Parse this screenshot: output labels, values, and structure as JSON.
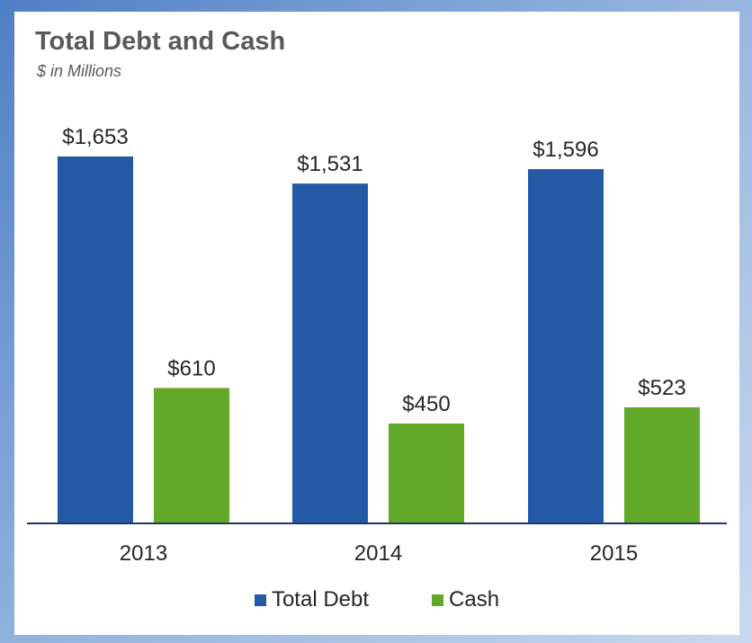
{
  "chart_data": {
    "type": "bar",
    "title": "Total Debt and Cash",
    "subtitle": "$ in Millions",
    "categories": [
      "2013",
      "2014",
      "2015"
    ],
    "series": [
      {
        "name": "Total Debt",
        "color": "#2459a6",
        "values": [
          1653,
          1531,
          1596
        ],
        "labels": [
          "$1,653",
          "$1,531",
          "$1,596"
        ]
      },
      {
        "name": "Cash",
        "color": "#62a829",
        "values": [
          610,
          450,
          523
        ],
        "labels": [
          "$610",
          "$450",
          "$523"
        ]
      }
    ],
    "ylim": [
      0,
      1653
    ],
    "grid": false,
    "legend_position": "bottom",
    "axis_color": "#1f3864"
  }
}
